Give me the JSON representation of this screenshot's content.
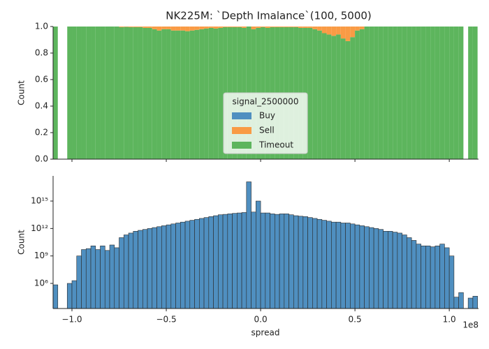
{
  "chart_data": [
    {
      "type": "histogram",
      "title": "NK225M: `Depth Imalance`(100, 5000)",
      "ylabel": "Count",
      "bins": [
        -1.1,
        -1.075,
        -1.05,
        -1.025,
        -1,
        -0.975,
        -0.95,
        -0.925,
        -0.9,
        -0.875,
        -0.85,
        -0.825,
        -0.8,
        -0.775,
        -0.75,
        -0.725,
        -0.7,
        -0.675,
        -0.65,
        -0.625,
        -0.6,
        -0.575,
        -0.55,
        -0.525,
        -0.5,
        -0.475,
        -0.45,
        -0.425,
        -0.4,
        -0.375,
        -0.35,
        -0.325,
        -0.3,
        -0.275,
        -0.25,
        -0.225,
        -0.2,
        -0.175,
        -0.15,
        -0.125,
        -0.1,
        -0.075,
        -0.05,
        -0.025,
        0,
        0.025,
        0.05,
        0.075,
        0.1,
        0.125,
        0.15,
        0.175,
        0.2,
        0.225,
        0.25,
        0.275,
        0.3,
        0.325,
        0.35,
        0.375,
        0.4,
        0.425,
        0.45,
        0.475,
        0.5,
        0.525,
        0.55,
        0.575,
        0.6,
        0.625,
        0.65,
        0.675,
        0.7,
        0.725,
        0.75,
        0.775,
        0.8,
        0.825,
        0.85,
        0.875,
        0.9,
        0.925,
        0.95,
        0.975,
        1,
        1.025,
        1.05,
        1.075,
        1.1,
        1.125,
        1.15
      ],
      "legend_title": "signal_2500000",
      "series": [
        {
          "name": "Buy",
          "color": "#4f8fc0",
          "values": [
            0,
            null,
            null,
            0,
            0,
            0,
            0,
            0,
            0,
            0,
            0,
            0,
            0,
            0,
            0,
            0,
            0,
            0,
            0,
            0,
            0,
            0,
            0,
            0,
            0,
            0,
            0,
            0,
            0,
            0,
            0,
            0,
            0,
            0,
            0,
            0,
            0,
            0,
            0,
            0,
            0,
            0,
            0,
            0,
            0,
            0,
            0,
            0,
            0,
            0,
            0,
            0,
            0,
            0,
            0,
            0,
            0,
            0,
            0,
            0,
            0,
            0,
            0,
            0,
            0,
            0,
            0,
            0,
            0,
            0,
            0,
            0,
            0,
            0,
            0,
            0,
            0,
            0,
            0,
            0,
            0,
            0,
            0,
            0,
            0,
            0,
            0,
            null,
            0,
            0
          ]
        },
        {
          "name": "Sell",
          "color": "#f99b45",
          "values": [
            0,
            null,
            null,
            0,
            0,
            0,
            0,
            0,
            0,
            0,
            0,
            0,
            0,
            0,
            0.005,
            0.003,
            0.005,
            0.005,
            0.005,
            0.01,
            0.01,
            0.02,
            0.03,
            0.02,
            0.02,
            0.03,
            0.03,
            0.03,
            0.035,
            0.03,
            0.025,
            0.02,
            0.015,
            0.01,
            0.015,
            0.01,
            0.005,
            0.005,
            0.005,
            0.005,
            0.01,
            0,
            0.02,
            0.01,
            0.005,
            0.01,
            0.005,
            0.005,
            0.005,
            0.005,
            0.005,
            0.005,
            0.01,
            0.01,
            0.01,
            0.02,
            0.03,
            0.05,
            0.06,
            0.07,
            0.06,
            0.09,
            0.11,
            0.08,
            0.03,
            0.02,
            0,
            0,
            0,
            0,
            0,
            0,
            0,
            0,
            0,
            0,
            0,
            0,
            0,
            0,
            0,
            0,
            0,
            0,
            0,
            0,
            0,
            null,
            0,
            0
          ]
        },
        {
          "name": "Timeout",
          "color": "#5db55d",
          "values": [
            1,
            null,
            null,
            1,
            1,
            1,
            1,
            1,
            1,
            1,
            1,
            1,
            1,
            1,
            0.995,
            0.997,
            0.995,
            0.995,
            0.995,
            0.99,
            0.99,
            0.98,
            0.97,
            0.98,
            0.98,
            0.97,
            0.97,
            0.97,
            0.965,
            0.97,
            0.975,
            0.98,
            0.985,
            0.99,
            0.985,
            0.99,
            0.995,
            0.995,
            0.995,
            0.995,
            0.99,
            1,
            0.98,
            0.99,
            0.995,
            0.99,
            0.995,
            0.995,
            0.995,
            0.995,
            0.995,
            0.995,
            0.99,
            0.99,
            0.99,
            0.98,
            0.97,
            0.95,
            0.94,
            0.93,
            0.94,
            0.91,
            0.89,
            0.92,
            0.97,
            0.98,
            1,
            1,
            1,
            1,
            1,
            1,
            1,
            1,
            1,
            1,
            1,
            1,
            1,
            1,
            1,
            1,
            1,
            1,
            1,
            1,
            1,
            null,
            1,
            1
          ]
        }
      ],
      "xlim": [
        -1.1,
        1.155
      ],
      "xticks": [
        -1,
        -0.5,
        0,
        0.5,
        1
      ],
      "ylim": [
        0,
        1
      ],
      "yticks": [
        {
          "value": 0,
          "label": "0.0"
        },
        {
          "value": 0.2,
          "label": "0.2"
        },
        {
          "value": 0.4,
          "label": "0.4"
        },
        {
          "value": 0.6,
          "label": "0.6"
        },
        {
          "value": 0.8,
          "label": "0.8"
        },
        {
          "value": 1,
          "label": "1.0"
        }
      ]
    },
    {
      "type": "histogram",
      "ylabel": "Count",
      "xlabel": "spread",
      "x_offset_label": "1e8",
      "color": "#4f8fc0",
      "yscale": "log",
      "bins": [
        -1.1,
        -1.075,
        -1.05,
        -1.025,
        -1,
        -0.975,
        -0.95,
        -0.925,
        -0.9,
        -0.875,
        -0.85,
        -0.825,
        -0.8,
        -0.775,
        -0.75,
        -0.725,
        -0.7,
        -0.675,
        -0.65,
        -0.625,
        -0.6,
        -0.575,
        -0.55,
        -0.525,
        -0.5,
        -0.475,
        -0.45,
        -0.425,
        -0.4,
        -0.375,
        -0.35,
        -0.325,
        -0.3,
        -0.275,
        -0.25,
        -0.225,
        -0.2,
        -0.175,
        -0.15,
        -0.125,
        -0.1,
        -0.075,
        -0.05,
        -0.025,
        0,
        0.025,
        0.05,
        0.075,
        0.1,
        0.125,
        0.15,
        0.175,
        0.2,
        0.225,
        0.25,
        0.275,
        0.3,
        0.325,
        0.35,
        0.375,
        0.4,
        0.425,
        0.45,
        0.475,
        0.5,
        0.525,
        0.55,
        0.575,
        0.6,
        0.625,
        0.65,
        0.675,
        0.7,
        0.725,
        0.75,
        0.775,
        0.8,
        0.825,
        0.85,
        0.875,
        0.9,
        0.925,
        0.95,
        0.975,
        1,
        1.025,
        1.05,
        1.075,
        1.1,
        1.125,
        1.15
      ],
      "values": [
        700000.0,
        0,
        0,
        1000000.0,
        2000000.0,
        1000000000.0,
        5000000000.0,
        6300000000.0,
        12600000000.0,
        5000000000.0,
        12600000000.0,
        4000000000.0,
        15800000000.0,
        7900000000.0,
        100000000000.0,
        200000000000.0,
        316000000000.0,
        500000000000.0,
        630000000000.0,
        790000000000.0,
        1000000000000.0,
        1260000000000.0,
        1580000000000.0,
        2000000000000.0,
        2500000000000.0,
        3160000000000.0,
        4000000000000.0,
        5000000000000.0,
        6300000000000.0,
        7900000000000.0,
        10000000000000.0,
        12600000000000.0,
        15800000000000.0,
        20000000000000.0,
        25000000000000.0,
        31600000000000.0,
        35000000000000.0,
        40000000000000.0,
        45000000000000.0,
        50000000000000.0,
        56000000000000.0,
        1.26e+17,
        63000000000000.0,
        1000000000000000.0,
        50000000000000.0,
        50000000000000.0,
        40000000000000.0,
        35000000000000.0,
        40000000000000.0,
        40000000000000.0,
        31600000000000.0,
        25000000000000.0,
        22000000000000.0,
        20000000000000.0,
        15800000000000.0,
        12600000000000.0,
        10000000000000.0,
        7900000000000.0,
        6300000000000.0,
        5000000000000.0,
        5000000000000.0,
        4000000000000.0,
        4000000000000.0,
        3160000000000.0,
        2500000000000.0,
        2000000000000.0,
        1580000000000.0,
        1260000000000.0,
        1000000000000.0,
        790000000000.0,
        500000000000.0,
        500000000000.0,
        400000000000.0,
        316000000000.0,
        200000000000.0,
        100000000000.0,
        50000000000.0,
        20000000000.0,
        12600000000.0,
        12600000000.0,
        10000000000.0,
        12600000000.0,
        20000000000.0,
        7900000000.0,
        1000000000.0,
        31600.0,
        100000.0,
        0,
        25000.0,
        40000.0
      ],
      "xlim": [
        -1.1,
        1.155
      ],
      "xticks": [
        {
          "value": -1,
          "label": "−1.0"
        },
        {
          "value": -0.5,
          "label": "−0.5"
        },
        {
          "value": 0,
          "label": "0.0"
        },
        {
          "value": 0.5,
          "label": "0.5"
        },
        {
          "value": 1,
          "label": "1.0"
        }
      ],
      "ylim": [
        1800,
        5.6e+17
      ],
      "yticks": [
        {
          "value": 1000000.0,
          "label": "10⁶"
        },
        {
          "value": 1000000000.0,
          "label": "10⁹"
        },
        {
          "value": 1000000000000.0,
          "label": "10¹²"
        },
        {
          "value": 1000000000000000.0,
          "label": "10¹⁵"
        }
      ]
    }
  ]
}
